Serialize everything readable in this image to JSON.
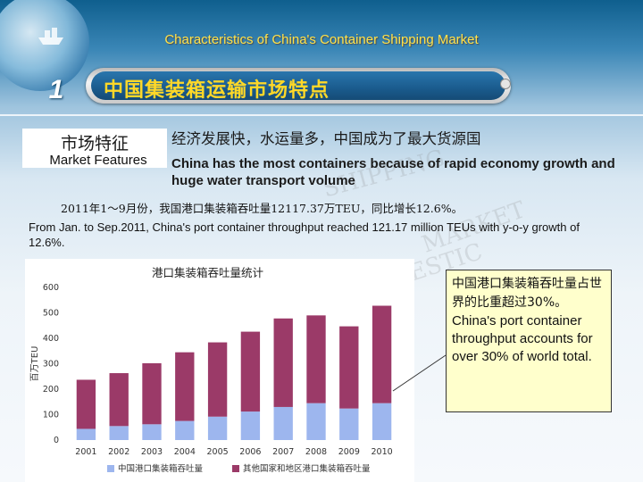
{
  "header": {
    "title": "Characteristics of China's Container Shipping Market"
  },
  "section": {
    "number": "1",
    "title": "中国集装箱运输市场特点"
  },
  "feature": {
    "label_zh": "市场特征",
    "label_en": "Market Features"
  },
  "summary": {
    "zh": "经济发展快，水运量多，中国成为了最大货源国",
    "en": "China has the most containers because of rapid economy growth and huge water transport volume"
  },
  "stat": {
    "zh": "2011年1～9月份，我国港口集装箱吞吐量12117.37万TEU，同比增长12.6%。",
    "en": "From Jan. to Sep.2011, China's port container throughput reached 121.17 million TEUs with y-o-y growth of 12.6%."
  },
  "callout": {
    "zh": "中国港口集装箱吞吐量占世界的比重超过30%。",
    "en": "China's port container throughput accounts for over 30% of world total."
  },
  "colors": {
    "series_china": "#9db6ee",
    "series_world_other": "#9b3a68",
    "accent_yellow": "#ffd828"
  },
  "chart_data": {
    "type": "bar",
    "stacked": true,
    "title": "港口集装箱吞吐量统计",
    "ylabel": "百万TEU",
    "xlabel": "",
    "ylim": [
      0,
      600
    ],
    "yticks": [
      0,
      100,
      200,
      300,
      400,
      500,
      600
    ],
    "categories": [
      "2001",
      "2002",
      "2003",
      "2004",
      "2005",
      "2006",
      "2007",
      "2008",
      "2009",
      "2010"
    ],
    "series": [
      {
        "name": "中国港口集装箱吞吐量",
        "values": [
          44,
          55,
          62,
          75,
          92,
          112,
          130,
          145,
          124,
          145
        ]
      },
      {
        "name": "其他国家和地区港口集装箱吞吐量",
        "values": [
          193,
          208,
          240,
          270,
          292,
          314,
          348,
          345,
          323,
          383
        ]
      }
    ],
    "legend_position": "bottom",
    "grid": false
  }
}
